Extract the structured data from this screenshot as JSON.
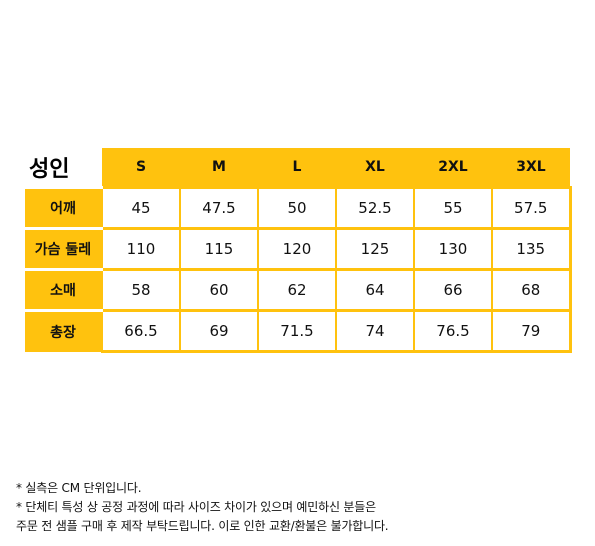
{
  "table": {
    "title": "성인",
    "sizes": [
      "S",
      "M",
      "L",
      "XL",
      "2XL",
      "3XL"
    ],
    "rows": [
      {
        "label": "어깨",
        "values": [
          "45",
          "47.5",
          "50",
          "52.5",
          "55",
          "57.5"
        ]
      },
      {
        "label": "가슴 둘레",
        "values": [
          "110",
          "115",
          "120",
          "125",
          "130",
          "135"
        ]
      },
      {
        "label": "소매",
        "values": [
          "58",
          "60",
          "62",
          "64",
          "66",
          "68"
        ]
      },
      {
        "label": "총장",
        "values": [
          "66.5",
          "69",
          "71.5",
          "74",
          "76.5",
          "79"
        ]
      }
    ]
  },
  "notes": {
    "line1": "* 실측은 CM 단위입니다.",
    "line2": "* 단체티 특성 상 공정 과정에 따라 사이즈 차이가 있으며 예민하신 분들은",
    "line3": "주문 전 샘플 구매 후 제작 부탁드립니다. 이로 인한 교환/환불은 불가합니다."
  },
  "colors": {
    "accent": "#ffc20e",
    "text": "#111111",
    "background": "#ffffff"
  }
}
